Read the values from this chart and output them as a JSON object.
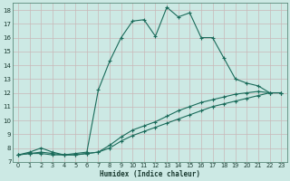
{
  "title": "",
  "xlabel": "Humidex (Indice chaleur)",
  "bg_color": "#cce9e4",
  "line_color": "#1a6b5a",
  "grid_color": "#b8ddd8",
  "xlim": [
    -0.5,
    23.5
  ],
  "ylim": [
    7,
    18.5
  ],
  "yticks": [
    7,
    8,
    9,
    10,
    11,
    12,
    13,
    14,
    15,
    16,
    17,
    18
  ],
  "xticks": [
    0,
    1,
    2,
    3,
    4,
    5,
    6,
    7,
    8,
    9,
    10,
    11,
    12,
    13,
    14,
    15,
    16,
    17,
    18,
    19,
    20,
    21,
    22,
    23
  ],
  "line1_x": [
    0,
    1,
    2,
    3,
    4,
    5,
    6,
    7,
    8,
    9,
    10,
    11,
    12,
    13,
    14,
    15,
    16,
    17,
    18,
    19,
    20,
    21,
    22,
    23
  ],
  "line1_y": [
    7.5,
    7.7,
    8.0,
    7.7,
    7.5,
    7.6,
    7.7,
    12.2,
    14.3,
    16.0,
    17.2,
    17.3,
    16.1,
    18.2,
    17.5,
    17.8,
    16.0,
    16.0,
    14.5,
    13.0,
    12.7,
    12.5,
    12.0,
    12.0
  ],
  "line2_x": [
    0,
    1,
    2,
    3,
    4,
    5,
    6,
    7,
    8,
    9,
    10,
    11,
    12,
    13,
    14,
    15,
    16,
    17,
    18,
    19,
    20,
    21,
    22,
    23
  ],
  "line2_y": [
    7.5,
    7.6,
    7.7,
    7.6,
    7.5,
    7.5,
    7.6,
    7.7,
    8.2,
    8.8,
    9.3,
    9.6,
    9.9,
    10.3,
    10.7,
    11.0,
    11.3,
    11.5,
    11.7,
    11.9,
    12.0,
    12.1,
    12.0,
    12.0
  ],
  "line3_x": [
    0,
    1,
    2,
    3,
    4,
    5,
    6,
    7,
    8,
    9,
    10,
    11,
    12,
    13,
    14,
    15,
    16,
    17,
    18,
    19,
    20,
    21,
    22,
    23
  ],
  "line3_y": [
    7.5,
    7.6,
    7.6,
    7.5,
    7.5,
    7.5,
    7.6,
    7.7,
    8.0,
    8.5,
    8.9,
    9.2,
    9.5,
    9.8,
    10.1,
    10.4,
    10.7,
    11.0,
    11.2,
    11.4,
    11.6,
    11.8,
    12.0,
    12.0
  ]
}
